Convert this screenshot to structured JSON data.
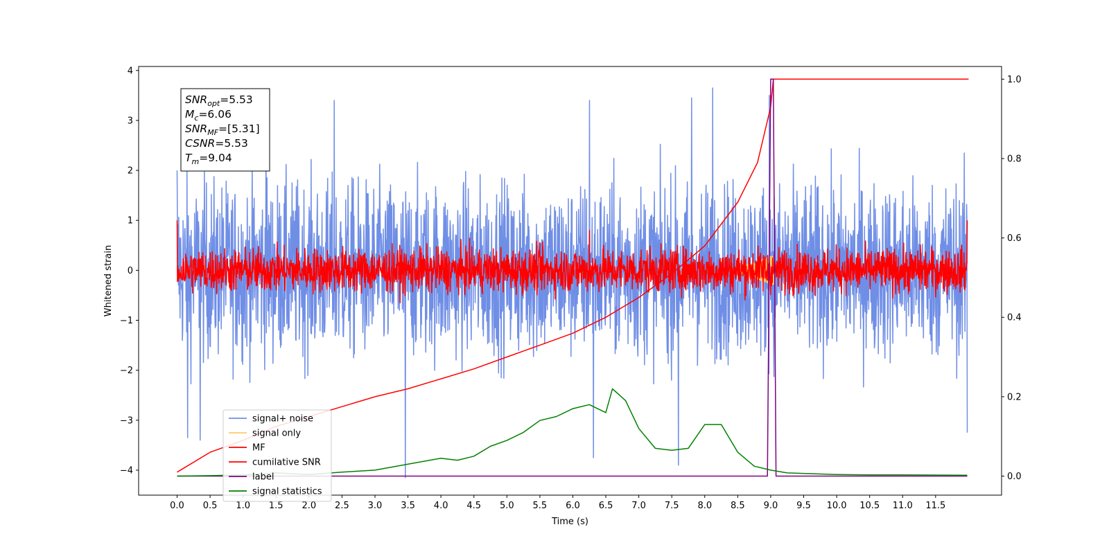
{
  "chart_data": {
    "type": "line",
    "xlabel": "Time (s)",
    "ylabel": "Whitened strain",
    "xlim": [
      -0.5833,
      12.5
    ],
    "ylim": [
      -4.5,
      4.08
    ],
    "y2lim": [
      -0.048,
      1.032
    ],
    "x_ticks": [
      0.0,
      0.5,
      1.0,
      1.5,
      2.0,
      2.5,
      3.0,
      3.5,
      4.0,
      4.5,
      5.0,
      5.5,
      6.0,
      6.5,
      7.0,
      7.5,
      8.0,
      8.5,
      9.0,
      9.5,
      10.0,
      10.5,
      11.0,
      11.5
    ],
    "x_tick_labels": [
      "0.0",
      "0.5",
      "1.0",
      "1.5",
      "2.0",
      "2.5",
      "3.0",
      "3.5",
      "4.0",
      "4.5",
      "5.0",
      "5.5",
      "6.0",
      "6.5",
      "7.0",
      "7.5",
      "8.0",
      "8.5",
      "9.0",
      "9.5",
      "10.0",
      "10.5",
      "11.0",
      "11.5"
    ],
    "y_ticks": [
      -4,
      -3,
      -2,
      -1,
      0,
      1,
      2,
      3,
      4
    ],
    "y_tick_labels": [
      "−4",
      "−3",
      "−2",
      "−1",
      "0",
      "1",
      "2",
      "3",
      "4"
    ],
    "y2_ticks": [
      0.0,
      0.2,
      0.4,
      0.6,
      0.8,
      1.0
    ],
    "y2_tick_labels": [
      "0.0",
      "0.2",
      "0.4",
      "0.6",
      "0.8",
      "1.0"
    ],
    "legend": {
      "location": "lower-left",
      "entries": [
        {
          "label": "signal+ noise",
          "color": "#6f8ee6"
        },
        {
          "label": "signal only",
          "color": "#ffc966"
        },
        {
          "label": "MF",
          "color": "#ff0000"
        },
        {
          "label": "cumilative SNR",
          "color": "#ff0000"
        },
        {
          "label": "label",
          "color": "#800080"
        },
        {
          "label": "signal statistics",
          "color": "#008000"
        }
      ]
    },
    "annotation": {
      "lines": [
        {
          "sym": "SNR",
          "sub": "opt",
          "rest": "=5.53"
        },
        {
          "sym": "M",
          "sub": "c",
          "rest": "=6.06"
        },
        {
          "sym": "SNR",
          "sub": "MF",
          "rest": "=[5.31]"
        },
        {
          "sym": "CSNR",
          "sub": "",
          "rest": "=5.53"
        },
        {
          "sym": "T",
          "sub": "m",
          "rest": "=9.04"
        }
      ]
    },
    "series": [
      {
        "name": "signal+ noise",
        "axis": "left",
        "color": "#6f8ee6",
        "kind": "noise",
        "x_range": [
          0,
          11.98
        ],
        "amplitude": 2.0,
        "peak_extremes": [
          {
            "x": 0.0,
            "y": 2.0
          },
          {
            "x": 0.16,
            "y": -3.35
          },
          {
            "x": 0.35,
            "y": -3.4
          },
          {
            "x": 1.35,
            "y": 3.0
          },
          {
            "x": 2.38,
            "y": 3.4
          },
          {
            "x": 3.46,
            "y": -4.15
          },
          {
            "x": 6.31,
            "y": -3.75
          },
          {
            "x": 6.25,
            "y": 3.4
          },
          {
            "x": 7.6,
            "y": -3.9
          },
          {
            "x": 7.8,
            "y": 3.45
          },
          {
            "x": 8.12,
            "y": 3.65
          },
          {
            "x": 8.98,
            "y": 3.5
          },
          {
            "x": 11.98,
            "y": -3.25
          }
        ]
      },
      {
        "name": "signal only",
        "axis": "left",
        "color": "#ffc966",
        "kind": "chirp",
        "x_range": [
          8.4,
          9.05
        ],
        "amplitude": 0.3
      },
      {
        "name": "MF",
        "axis": "left",
        "color": "#ff0000",
        "kind": "noise",
        "x_range": [
          0,
          11.98
        ],
        "amplitude": 0.5,
        "peak_extremes": [
          {
            "x": 0.0,
            "y": 1.0
          },
          {
            "x": 6.25,
            "y": 0.8
          },
          {
            "x": 11.98,
            "y": 1.0
          }
        ]
      },
      {
        "name": "cumilative SNR",
        "axis": "right",
        "color": "#ff0000",
        "x": [
          0.0,
          0.5,
          1.0,
          1.5,
          2.0,
          2.5,
          3.0,
          3.5,
          4.0,
          4.5,
          5.0,
          5.5,
          6.0,
          6.5,
          7.0,
          7.5,
          8.0,
          8.5,
          8.8,
          9.0,
          9.04,
          12.0
        ],
        "values": [
          0.01,
          0.06,
          0.09,
          0.125,
          0.15,
          0.175,
          0.2,
          0.22,
          0.245,
          0.27,
          0.3,
          0.33,
          0.36,
          0.4,
          0.45,
          0.51,
          0.58,
          0.69,
          0.79,
          0.93,
          1.0,
          1.0
        ]
      },
      {
        "name": "label",
        "axis": "right",
        "color": "#800080",
        "x": [
          0.0,
          8.95,
          9.0,
          9.04,
          9.08,
          11.98
        ],
        "values": [
          0.0,
          0.0,
          1.0,
          1.0,
          0.0,
          0.0
        ]
      },
      {
        "name": "signal statistics",
        "axis": "right",
        "color": "#008000",
        "x": [
          0.0,
          0.5,
          1.0,
          1.5,
          2.0,
          2.5,
          3.0,
          3.5,
          4.0,
          4.25,
          4.5,
          4.75,
          5.0,
          5.25,
          5.5,
          5.75,
          6.0,
          6.25,
          6.5,
          6.6,
          6.8,
          7.0,
          7.25,
          7.5,
          7.75,
          8.0,
          8.25,
          8.5,
          8.75,
          9.0,
          9.25,
          9.6,
          10.0,
          10.5,
          11.0,
          11.98
        ],
        "values": [
          0.0,
          0.001,
          0.003,
          0.008,
          0.004,
          0.01,
          0.015,
          0.03,
          0.045,
          0.04,
          0.05,
          0.075,
          0.09,
          0.11,
          0.14,
          0.15,
          0.17,
          0.18,
          0.16,
          0.22,
          0.19,
          0.12,
          0.07,
          0.065,
          0.07,
          0.13,
          0.13,
          0.06,
          0.025,
          0.015,
          0.008,
          0.006,
          0.004,
          0.003,
          0.003,
          0.002
        ]
      }
    ]
  }
}
